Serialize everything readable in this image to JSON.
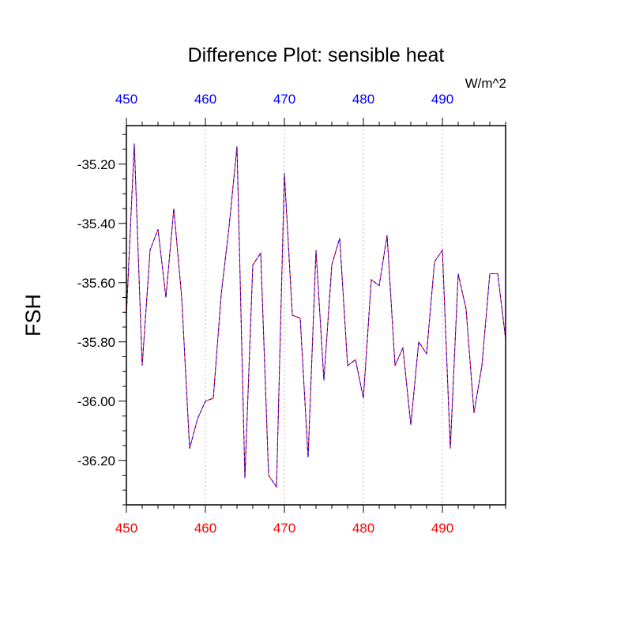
{
  "chart_data": {
    "type": "line",
    "title": "Difference Plot: sensible heat",
    "units_label": "W/m^2",
    "ylabel": "FSH",
    "xlabel": "",
    "xlim": [
      450,
      498
    ],
    "ylim": [
      -36.35,
      -35.07
    ],
    "xticks": [
      450,
      460,
      470,
      480,
      490
    ],
    "xtick_labels": [
      "450",
      "460",
      "470",
      "480",
      "490"
    ],
    "yticks": [
      -35.2,
      -35.4,
      -35.6,
      -35.8,
      -36.0,
      -36.2
    ],
    "ytick_labels": [
      "-35.20",
      "-35.40",
      "-35.60",
      "-35.80",
      "-36.00",
      "-36.20"
    ],
    "grid": {
      "vertical": true,
      "horizontal": false,
      "style": "dotted"
    },
    "colors": {
      "bottom_axis_labels": "#ff0000",
      "top_axis_labels": "#0000ff",
      "series_a": "#ff0000",
      "series_b": "#0000ff",
      "grid": "#bbbbbb"
    },
    "series": [
      {
        "style": "solid",
        "color": "#ff0000",
        "x": [
          450,
          451,
          452,
          453,
          454,
          455,
          456,
          457,
          458,
          459,
          460,
          461,
          462,
          463,
          464,
          465,
          466,
          467,
          468,
          469,
          470,
          471,
          472,
          473,
          474,
          475,
          476,
          477,
          478,
          479,
          480,
          481,
          482,
          483,
          484,
          485,
          486,
          487,
          488,
          489,
          490,
          491,
          492,
          493,
          494,
          495,
          496,
          497,
          498
        ],
        "values": [
          -35.71,
          -35.13,
          -35.88,
          -35.49,
          -35.42,
          -35.65,
          -35.35,
          -35.65,
          -36.16,
          -36.06,
          -36.0,
          -35.99,
          -35.64,
          -35.41,
          -35.14,
          -36.26,
          -35.54,
          -35.5,
          -36.25,
          -36.29,
          -35.23,
          -35.71,
          -35.72,
          -36.19,
          -35.49,
          -35.93,
          -35.54,
          -35.45,
          -35.88,
          -35.86,
          -35.99,
          -35.59,
          -35.61,
          -35.44,
          -35.88,
          -35.82,
          -36.08,
          -35.8,
          -35.84,
          -35.53,
          -35.49,
          -36.16,
          -35.57,
          -35.69,
          -36.04,
          -35.88,
          -35.57,
          -35.57,
          -35.79
        ]
      },
      {
        "style": "dashed",
        "color": "#0000ff",
        "x": [
          450,
          451,
          452,
          453,
          454,
          455,
          456,
          457,
          458,
          459,
          460,
          461,
          462,
          463,
          464,
          465,
          466,
          467,
          468,
          469,
          470,
          471,
          472,
          473,
          474,
          475,
          476,
          477,
          478,
          479,
          480,
          481,
          482,
          483,
          484,
          485,
          486,
          487,
          488,
          489,
          490,
          491,
          492,
          493,
          494,
          495,
          496,
          497,
          498
        ],
        "values": [
          -35.71,
          -35.13,
          -35.88,
          -35.49,
          -35.42,
          -35.65,
          -35.35,
          -35.65,
          -36.16,
          -36.06,
          -36.0,
          -35.99,
          -35.64,
          -35.41,
          -35.14,
          -36.26,
          -35.54,
          -35.5,
          -36.25,
          -36.29,
          -35.23,
          -35.71,
          -35.72,
          -36.19,
          -35.49,
          -35.93,
          -35.54,
          -35.45,
          -35.88,
          -35.86,
          -35.99,
          -35.59,
          -35.61,
          -35.44,
          -35.88,
          -35.82,
          -36.08,
          -35.8,
          -35.84,
          -35.53,
          -35.49,
          -36.16,
          -35.57,
          -35.69,
          -36.04,
          -35.88,
          -35.57,
          -35.57,
          -35.79
        ]
      }
    ]
  }
}
